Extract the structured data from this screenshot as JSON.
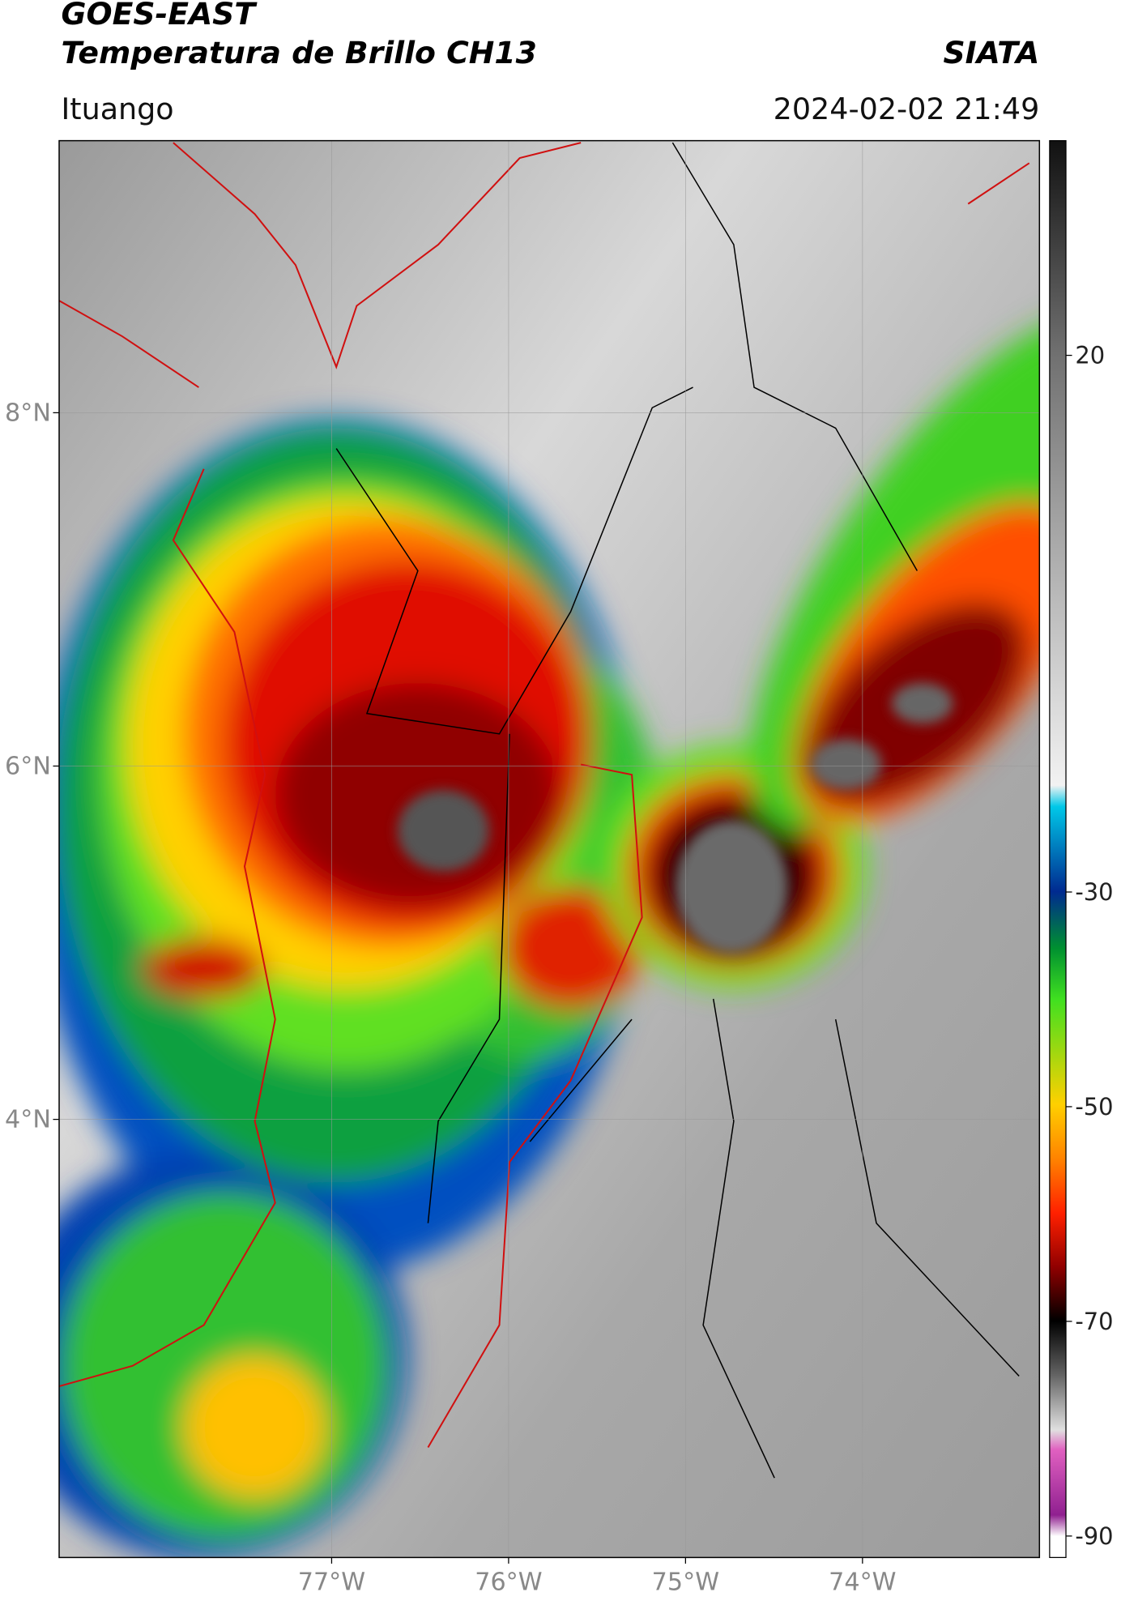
{
  "header": {
    "title": "GOES-EAST",
    "subtitle": "Temperatura de Brillo CH13",
    "credit": "SIATA",
    "location": "Ituango",
    "datetime": "2024-02-02 21:49"
  },
  "map": {
    "lonlim": [
      -78.54,
      -73.0
    ],
    "latlim": [
      1.52,
      9.54
    ],
    "lon_ticks": [
      {
        "value": -77,
        "label": "77°W"
      },
      {
        "value": -76,
        "label": "76°W"
      },
      {
        "value": -75,
        "label": "75°W"
      },
      {
        "value": -74,
        "label": "74°W"
      }
    ],
    "lat_ticks": [
      {
        "value": 8,
        "label": "8°N"
      },
      {
        "value": 6,
        "label": "6°N"
      },
      {
        "value": 4,
        "label": "4°N"
      }
    ],
    "grid": true
  },
  "colorbar": {
    "lim": [
      -92,
      40
    ],
    "ticks": [
      20,
      -30,
      -50,
      -70,
      -90
    ]
  }
}
